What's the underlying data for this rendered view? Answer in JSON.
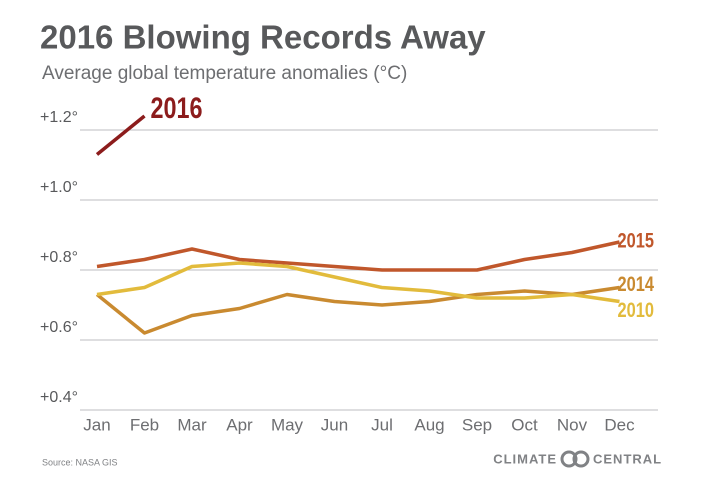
{
  "chart_data": {
    "type": "line",
    "title": "2016 Blowing Records Away",
    "subtitle": "Average global temperature anomalies (°C)",
    "categories": [
      "Jan",
      "Feb",
      "Mar",
      "Apr",
      "May",
      "Jun",
      "Jul",
      "Aug",
      "Sep",
      "Oct",
      "Nov",
      "Dec"
    ],
    "series": [
      {
        "name": "2016",
        "color": "#8c1c1c",
        "values": [
          1.13,
          1.24,
          null,
          null,
          null,
          null,
          null,
          null,
          null,
          null,
          null,
          null
        ]
      },
      {
        "name": "2015",
        "color": "#c0572b",
        "values": [
          0.81,
          0.83,
          0.86,
          0.83,
          0.82,
          0.81,
          0.8,
          0.8,
          0.8,
          0.83,
          0.85,
          0.88
        ]
      },
      {
        "name": "2014",
        "color": "#c98a30",
        "values": [
          0.73,
          0.62,
          0.67,
          0.69,
          0.73,
          0.71,
          0.7,
          0.71,
          0.73,
          0.74,
          0.73,
          0.75
        ]
      },
      {
        "name": "2010",
        "color": "#e2bb3c",
        "values": [
          0.73,
          0.75,
          0.81,
          0.82,
          0.81,
          0.78,
          0.75,
          0.74,
          0.72,
          0.72,
          0.73,
          0.71
        ]
      }
    ],
    "ylim": [
      0.4,
      1.3
    ],
    "yticks": [
      {
        "value": 0.4,
        "label": "+0.4°"
      },
      {
        "value": 0.6,
        "label": "+0.6°"
      },
      {
        "value": 0.8,
        "label": "+0.8°"
      },
      {
        "value": 1.0,
        "label": "+1.0°"
      },
      {
        "value": 1.2,
        "label": "+1.2°"
      }
    ],
    "grid": true,
    "source": "Source: NASA GIS",
    "logo": [
      "CLIMATE",
      "CENTRAL"
    ]
  }
}
